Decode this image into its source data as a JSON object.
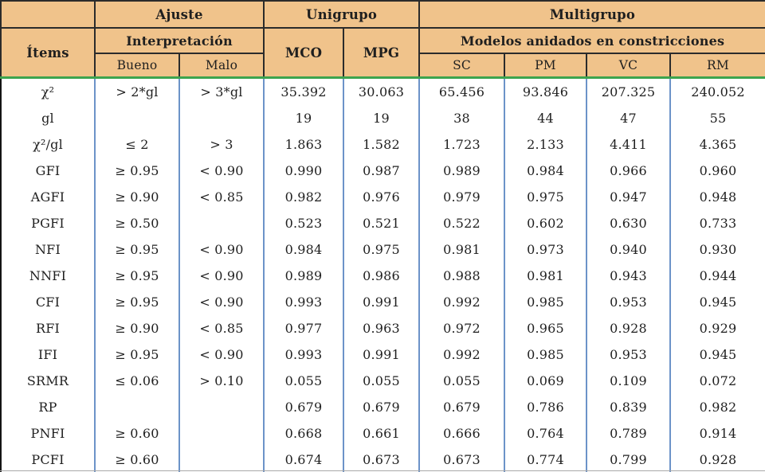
{
  "table": {
    "header": {
      "row1": {
        "corner": "",
        "ajuste": "Ajuste",
        "unigrupo": "Unigrupo",
        "multigrupo": "Multigrupo"
      },
      "row2": {
        "items": "Ítems",
        "interpretacion": "Interpretación",
        "mco": "MCO",
        "mpg": "MPG",
        "anidados": "Modelos anidados en constricciones"
      },
      "row3": {
        "bueno": "Bueno",
        "malo": "Malo",
        "sc": "SC",
        "pm": "PM",
        "vc": "VC",
        "rm": "RM"
      }
    },
    "rows": [
      {
        "item": "χ²",
        "bueno": "> 2*gl",
        "malo": "> 3*gl",
        "mco": "35.392",
        "mpg": "30.063",
        "sc": "65.456",
        "pm": "93.846",
        "vc": "207.325",
        "rm": "240.052"
      },
      {
        "item": "gl",
        "bueno": "",
        "malo": "",
        "mco": "19",
        "mpg": "19",
        "sc": "38",
        "pm": "44",
        "vc": "47",
        "rm": "55"
      },
      {
        "item": "χ²/gl",
        "bueno": "≤ 2",
        "malo": "> 3",
        "mco": "1.863",
        "mpg": "1.582",
        "sc": "1.723",
        "pm": "2.133",
        "vc": "4.411",
        "rm": "4.365"
      },
      {
        "item": "GFI",
        "bueno": "≥ 0.95",
        "malo": "< 0.90",
        "mco": "0.990",
        "mpg": "0.987",
        "sc": "0.989",
        "pm": "0.984",
        "vc": "0.966",
        "rm": "0.960"
      },
      {
        "item": "AGFI",
        "bueno": "≥ 0.90",
        "malo": "< 0.85",
        "mco": "0.982",
        "mpg": "0.976",
        "sc": "0.979",
        "pm": "0.975",
        "vc": "0.947",
        "rm": "0.948"
      },
      {
        "item": "PGFI",
        "bueno": "≥ 0.50",
        "malo": "",
        "mco": "0.523",
        "mpg": "0.521",
        "sc": "0.522",
        "pm": "0.602",
        "vc": "0.630",
        "rm": "0.733"
      },
      {
        "item": "NFI",
        "bueno": "≥ 0.95",
        "malo": "< 0.90",
        "mco": "0.984",
        "mpg": "0.975",
        "sc": "0.981",
        "pm": "0.973",
        "vc": "0.940",
        "rm": "0.930"
      },
      {
        "item": "NNFI",
        "bueno": "≥ 0.95",
        "malo": "< 0.90",
        "mco": "0.989",
        "mpg": "0.986",
        "sc": "0.988",
        "pm": "0.981",
        "vc": "0.943",
        "rm": "0.944"
      },
      {
        "item": "CFI",
        "bueno": "≥ 0.95",
        "malo": "< 0.90",
        "mco": "0.993",
        "mpg": "0.991",
        "sc": "0.992",
        "pm": "0.985",
        "vc": "0.953",
        "rm": "0.945"
      },
      {
        "item": "RFI",
        "bueno": "≥ 0.90",
        "malo": "< 0.85",
        "mco": "0.977",
        "mpg": "0.963",
        "sc": "0.972",
        "pm": "0.965",
        "vc": "0.928",
        "rm": "0.929"
      },
      {
        "item": "IFI",
        "bueno": "≥ 0.95",
        "malo": "< 0.90",
        "mco": "0.993",
        "mpg": "0.991",
        "sc": "0.992",
        "pm": "0.985",
        "vc": "0.953",
        "rm": "0.945"
      },
      {
        "item": "SRMR",
        "bueno": "≤ 0.06",
        "malo": "> 0.10",
        "mco": "0.055",
        "mpg": "0.055",
        "sc": "0.055",
        "pm": "0.069",
        "vc": "0.109",
        "rm": "0.072"
      },
      {
        "item": "RP",
        "bueno": "",
        "malo": "",
        "mco": "0.679",
        "mpg": "0.679",
        "sc": "0.679",
        "pm": "0.786",
        "vc": "0.839",
        "rm": "0.982"
      },
      {
        "item": "PNFI",
        "bueno": "≥ 0.60",
        "malo": "",
        "mco": "0.668",
        "mpg": "0.661",
        "sc": "0.666",
        "pm": "0.764",
        "vc": "0.789",
        "rm": "0.914"
      },
      {
        "item": "PCFI",
        "bueno": "≥ 0.60",
        "malo": "",
        "mco": "0.674",
        "mpg": "0.673",
        "sc": "0.673",
        "pm": "0.774",
        "vc": "0.799",
        "rm": "0.928"
      }
    ],
    "colors": {
      "header_bg": "#F0C38B",
      "header_border": "#2b2b2b",
      "outer_border": "#141414",
      "body_column_divider": "#6C93C8",
      "header_body_separator": "#3DA44E",
      "text": "#1f1f1f"
    }
  }
}
